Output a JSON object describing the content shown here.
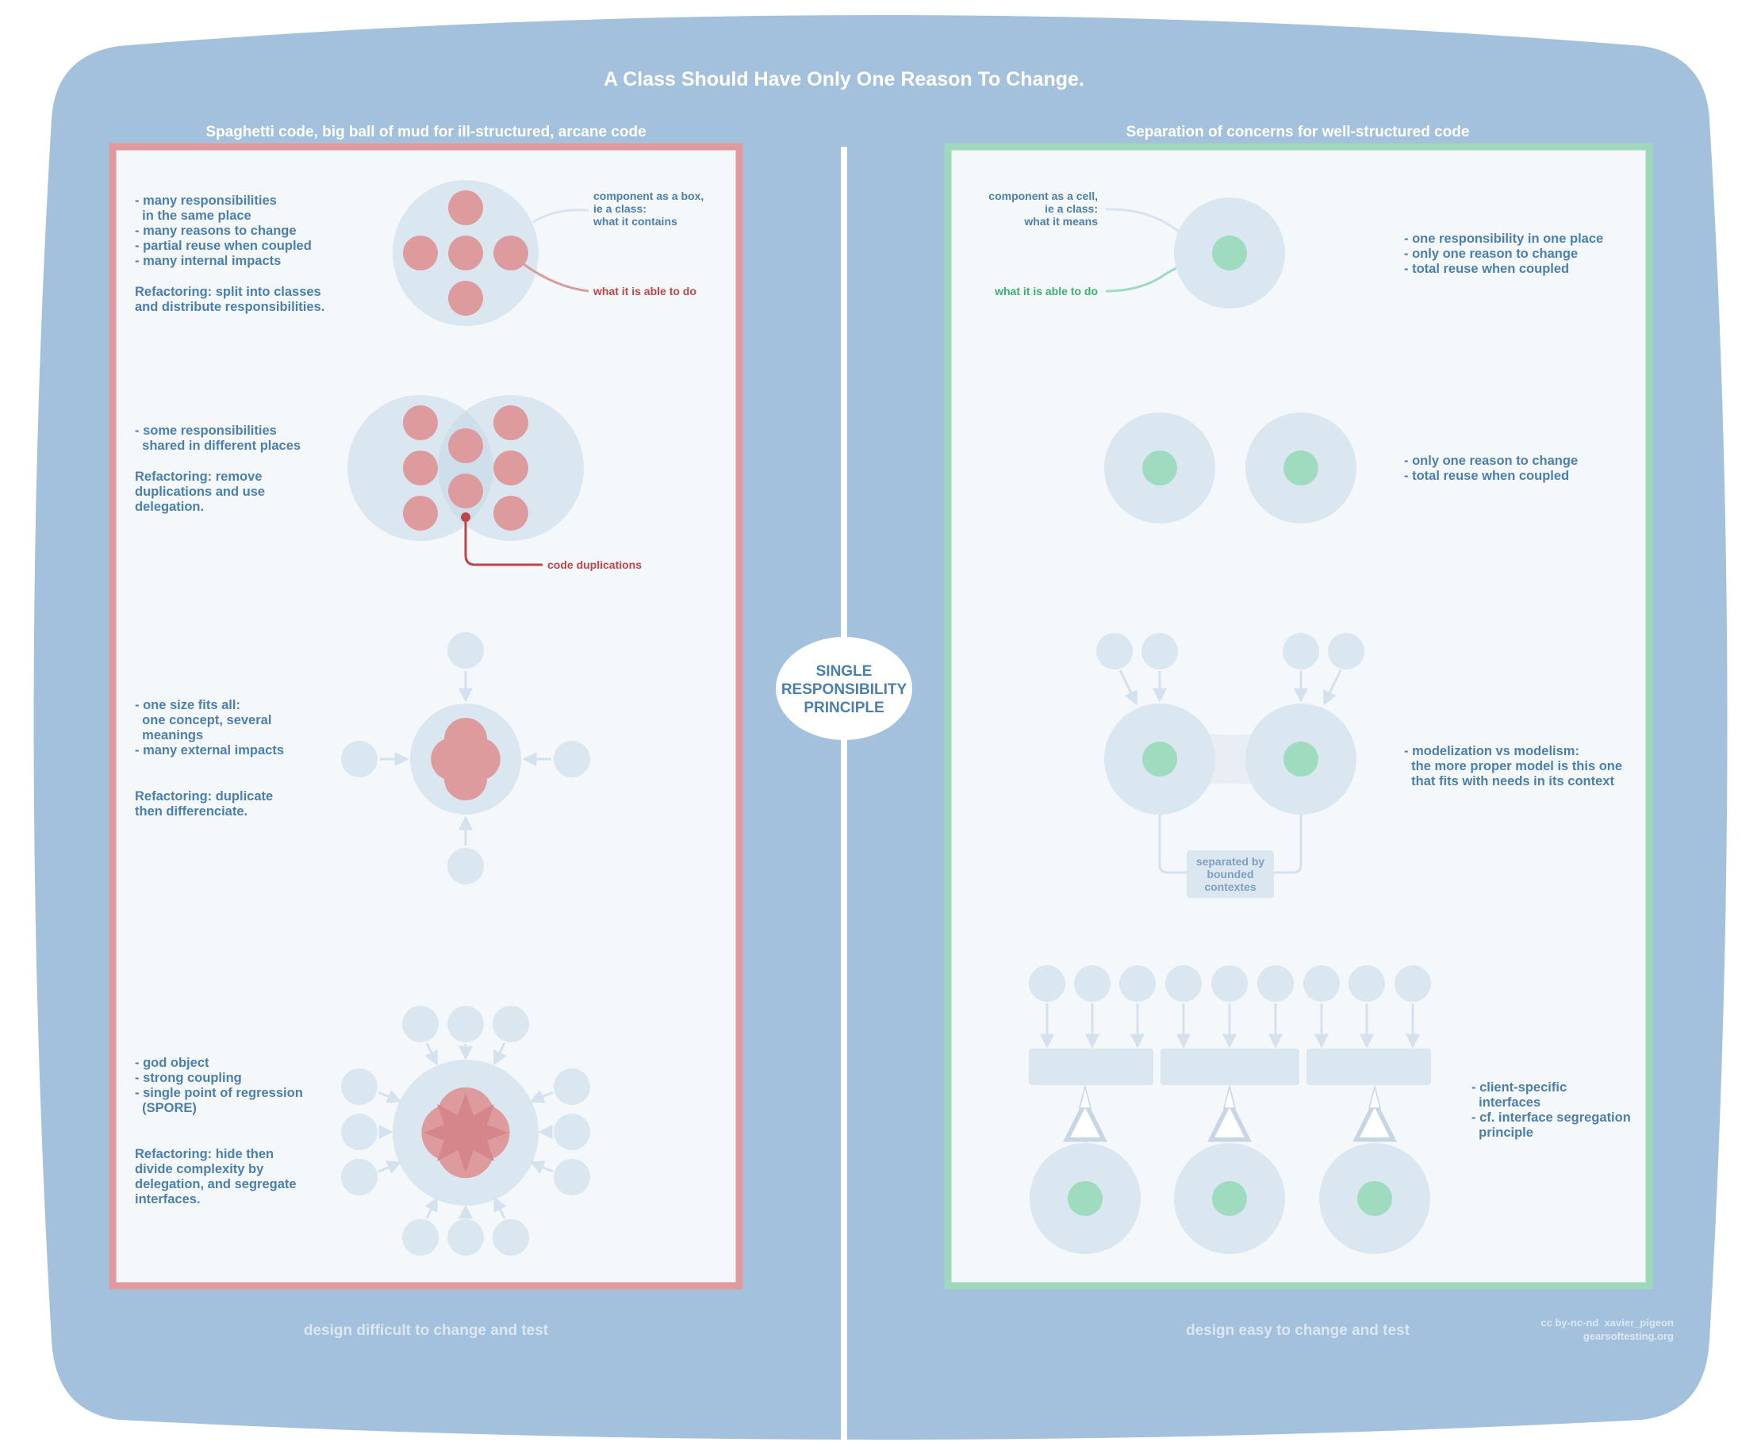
{
  "title": "A Class Should Have Only One Reason To Change.",
  "center_label": [
    "SINGLE",
    "RESPONSIBILITY",
    "PRINCIPLE"
  ],
  "colors": {
    "background": "#a3c1dc",
    "panel": "#f5f8fb",
    "text": "#4a7fb0",
    "bad_border": "#e09a9d",
    "bad_fill": "#de9b9d",
    "bad_label": "#c0444a",
    "good_border": "#9ed9bc",
    "good_fill": "#9edbbf",
    "good_label": "#3cae72",
    "cell": "#dae6f0",
    "footer": "#dbe7f2"
  },
  "left": {
    "header": "Spaghetti code, big ball of mud for ill-structured, arcane code",
    "footer": "design difficult to change and test",
    "sections": [
      {
        "lines": [
          "- many responsibilities",
          "  in the same place",
          "- many reasons to change",
          "- partial reuse when coupled",
          "- many internal impacts",
          "",
          "Refactoring: split into classes",
          "and distribute responsibilities."
        ],
        "callout_box": [
          "component as a box,",
          "ie a class:",
          "what it contains"
        ],
        "callout_able": "what it is able to do"
      },
      {
        "lines": [
          "- some responsibilities",
          "  shared in different places",
          "",
          "Refactoring: remove",
          "duplications and use",
          "delegation."
        ],
        "callout": "code duplications"
      },
      {
        "lines": [
          "- one size fits all:",
          "  one concept, several",
          "  meanings",
          "- many external impacts",
          "",
          "",
          "Refactoring: duplicate",
          "then differenciate."
        ]
      },
      {
        "lines": [
          "- god object",
          "- strong coupling",
          "- single point of regression",
          "  (SPORE)",
          "",
          "",
          "Refactoring: hide then",
          "divide complexity by",
          "delegation, and segregate",
          "interfaces."
        ]
      }
    ]
  },
  "right": {
    "header": "Separation of concerns for well-structured code",
    "footer": "design easy to change and test",
    "sections": [
      {
        "lines": [
          "- one responsibility in one place",
          "- only one reason to change",
          "- total reuse when coupled"
        ],
        "callout_cell": [
          "component as a cell,",
          "ie a class:",
          "what it means"
        ],
        "callout_able": "what it is able to do"
      },
      {
        "lines": [
          "- only one reason to change",
          "- total reuse when coupled"
        ]
      },
      {
        "lines": [
          "- modelization vs modelism:",
          "  the more proper model is this one",
          "  that fits with needs in its context"
        ],
        "box": [
          "separated by",
          "bounded",
          "contextes"
        ]
      },
      {
        "lines": [
          "- client-specific",
          "  interfaces",
          "- cf. interface segregation",
          "  principle"
        ]
      }
    ]
  },
  "credits": [
    "cc by-nc-nd  xavier_pigeon",
    "gearsoftesting.org"
  ]
}
